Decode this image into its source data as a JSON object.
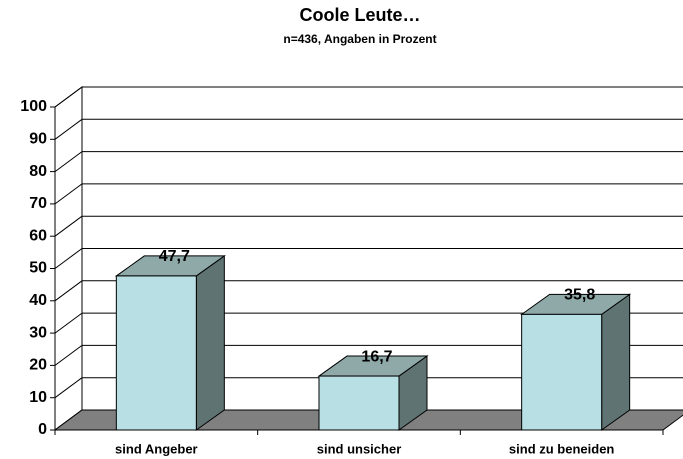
{
  "chart_data": {
    "type": "bar3d",
    "title": "Coole Leute…",
    "subtitle": "n=436, Angaben in Prozent",
    "categories": [
      "sind Angeber",
      "sind unsicher",
      "sind zu beneiden"
    ],
    "values": [
      47.7,
      16.7,
      35.8
    ],
    "value_labels": [
      "47,7",
      "16,7",
      "35,8"
    ],
    "color": "#b8e0e4",
    "ylim": [
      0,
      100
    ],
    "yticks": [
      0,
      10,
      20,
      30,
      40,
      50,
      60,
      70,
      80,
      90,
      100
    ],
    "grid": true
  }
}
